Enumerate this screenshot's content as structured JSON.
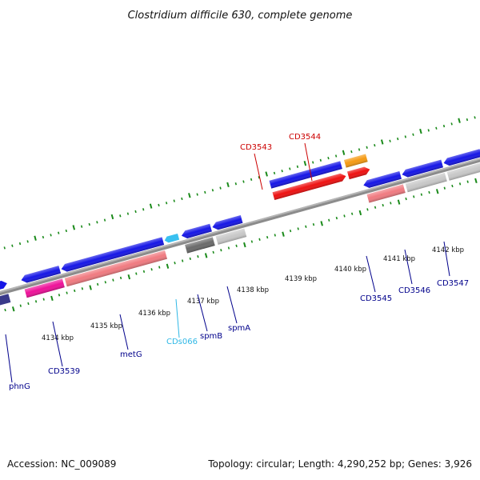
{
  "title": "Clostridium difficile 630, complete genome",
  "footer": {
    "accession": "Accession: NC_009089",
    "topology": "Topology: circular; Length: 4,290,252 bp; Genes: 3,926"
  },
  "colors": {
    "blue": "#1616e6",
    "red": "#ee1111",
    "pink": "#f07a80",
    "magenta": "#ee1199",
    "orange": "#f59a12",
    "gray": "#c8c8c8",
    "darkgray": "#6a6a6a",
    "navy": "#3a3a8a",
    "cyan": "#39c0f0",
    "tick": "#1a8a1a",
    "backbone": "#8c8c8c",
    "label_blue": "#00008b",
    "label_red": "#cc0000",
    "label_cyan": "#2fb8e6"
  },
  "coordinate_labels": [
    "4134 kbp",
    "4135 kbp",
    "4136 kbp",
    "4137 kbp",
    "4138 kbp",
    "4139 kbp",
    "4140 kbp",
    "4141 kbp",
    "4142 kbp"
  ],
  "gene_labels": {
    "phnG": "phnG",
    "CD3539": "CD3539",
    "metG": "metG",
    "CDs066": "CDs066",
    "spmB": "spmB",
    "spmA": "spmA",
    "CD3543": "CD3543",
    "CD3544": "CD3544",
    "CD3545": "CD3545",
    "CD3546": "CD3546",
    "CD3547": "CD3547"
  }
}
